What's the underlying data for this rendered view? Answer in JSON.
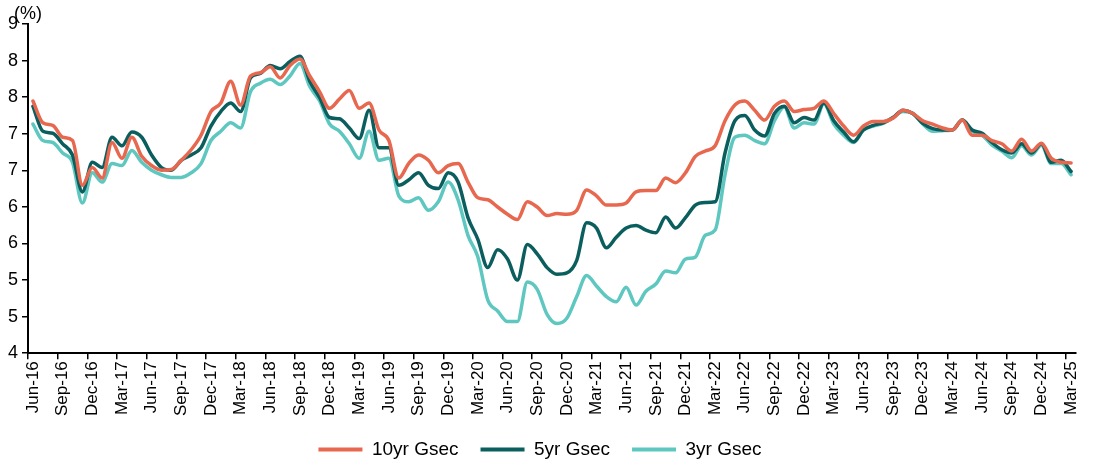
{
  "chart_data": {
    "type": "line",
    "ylabel": "(%)",
    "categories": [
      "Jun-16",
      null,
      null,
      "Sep-16",
      null,
      null,
      "Dec-16",
      null,
      null,
      "Mar-17",
      null,
      null,
      "Jun-17",
      null,
      null,
      "Sep-17",
      null,
      null,
      "Dec-17",
      null,
      null,
      "Mar-18",
      null,
      null,
      "Jun-18",
      null,
      null,
      "Sep-18",
      null,
      null,
      "Dec-18",
      null,
      null,
      "Mar-19",
      null,
      null,
      "Jun-19",
      null,
      null,
      "Sep-19",
      null,
      null,
      "Dec-19",
      null,
      null,
      "Mar-20",
      null,
      null,
      "Jun-20",
      null,
      null,
      "Sep-20",
      null,
      null,
      "Dec-20",
      null,
      null,
      "Mar-21",
      null,
      null,
      "Jun-21",
      null,
      null,
      "Sep-21",
      null,
      null,
      "Dec-21",
      null,
      null,
      "Mar-22",
      null,
      null,
      "Jun-22",
      null,
      null,
      "Sep-22",
      null,
      null,
      "Dec-22",
      null,
      null,
      "Mar-23",
      null,
      null,
      "Jun-23",
      null,
      null,
      "Sep-23",
      null,
      null,
      "Dec-23",
      null,
      null,
      "Mar-24",
      null,
      null,
      "Jun-24",
      null,
      null,
      "Sep-24",
      null,
      null,
      "Dec-24",
      null,
      null,
      "Mar-25"
    ],
    "series": [
      {
        "name": "10yr Gsec",
        "color": "#e8684f",
        "values": [
          7.83,
          7.5,
          7.46,
          7.28,
          7.23,
          6.55,
          6.82,
          6.66,
          7.2,
          6.96,
          7.28,
          6.99,
          6.85,
          6.78,
          6.79,
          6.93,
          7.09,
          7.31,
          7.67,
          7.8,
          8.13,
          7.77,
          8.21,
          8.26,
          8.35,
          8.18,
          8.37,
          8.47,
          8.21,
          7.97,
          7.72,
          7.86,
          7.99,
          7.72,
          7.8,
          7.39,
          7.23,
          6.66,
          6.88,
          7.01,
          6.93,
          6.74,
          6.85,
          6.88,
          6.6,
          6.36,
          6.33,
          6.22,
          6.11,
          6.03,
          6.3,
          6.22,
          6.09,
          6.12,
          6.11,
          6.17,
          6.48,
          6.39,
          6.25,
          6.25,
          6.28,
          6.45,
          6.47,
          6.47,
          6.66,
          6.59,
          6.74,
          6.99,
          7.07,
          7.15,
          7.53,
          7.77,
          7.83,
          7.69,
          7.54,
          7.75,
          7.83,
          7.67,
          7.7,
          7.72,
          7.83,
          7.64,
          7.45,
          7.31,
          7.45,
          7.52,
          7.52,
          7.57,
          7.69,
          7.64,
          7.53,
          7.48,
          7.42,
          7.39,
          7.54,
          7.31,
          7.31,
          7.23,
          7.18,
          7.07,
          7.25,
          7.07,
          7.19,
          6.96,
          6.9,
          6.89
        ]
      },
      {
        "name": "5yr Gsec",
        "color": "#0b5e5e",
        "values": [
          7.75,
          7.37,
          7.34,
          7.18,
          7.01,
          6.45,
          6.9,
          6.82,
          7.28,
          7.15,
          7.36,
          7.28,
          7.01,
          6.82,
          6.78,
          6.93,
          7.01,
          7.12,
          7.45,
          7.67,
          7.8,
          7.67,
          8.18,
          8.25,
          8.37,
          8.32,
          8.43,
          8.51,
          8.13,
          7.88,
          7.58,
          7.56,
          7.42,
          7.26,
          7.69,
          7.12,
          7.12,
          6.55,
          6.63,
          6.74,
          6.55,
          6.5,
          6.74,
          6.6,
          6.06,
          5.73,
          5.3,
          5.57,
          5.43,
          5.11,
          5.65,
          5.51,
          5.3,
          5.2,
          5.22,
          5.41,
          5.98,
          5.9,
          5.6,
          5.76,
          5.9,
          5.94,
          5.87,
          5.83,
          6.07,
          5.9,
          6.06,
          6.25,
          6.29,
          6.3,
          7.04,
          7.53,
          7.61,
          7.39,
          7.3,
          7.64,
          7.75,
          7.5,
          7.58,
          7.54,
          7.8,
          7.53,
          7.36,
          7.21,
          7.39,
          7.46,
          7.5,
          7.58,
          7.69,
          7.64,
          7.49,
          7.41,
          7.39,
          7.39,
          7.54,
          7.39,
          7.34,
          7.2,
          7.09,
          7.04,
          7.18,
          7.04,
          7.18,
          6.9,
          6.93,
          6.76
        ]
      },
      {
        "name": "3yr Gsec",
        "color": "#5ec8c0",
        "values": [
          7.48,
          7.23,
          7.2,
          7.04,
          6.9,
          6.28,
          6.74,
          6.6,
          6.88,
          6.85,
          7.08,
          6.9,
          6.78,
          6.71,
          6.67,
          6.67,
          6.74,
          6.88,
          7.23,
          7.37,
          7.5,
          7.42,
          7.97,
          8.1,
          8.16,
          8.08,
          8.21,
          8.4,
          8.05,
          7.83,
          7.48,
          7.37,
          7.18,
          6.96,
          7.37,
          6.93,
          6.96,
          6.39,
          6.3,
          6.36,
          6.17,
          6.3,
          6.6,
          6.33,
          5.79,
          5.46,
          4.81,
          4.64,
          4.48,
          4.48,
          5.08,
          4.97,
          4.59,
          4.45,
          4.53,
          4.86,
          5.18,
          5.02,
          4.86,
          4.78,
          5.0,
          4.73,
          4.94,
          5.05,
          5.25,
          5.22,
          5.43,
          5.46,
          5.79,
          5.87,
          6.71,
          7.28,
          7.31,
          7.23,
          7.18,
          7.53,
          7.74,
          7.42,
          7.5,
          7.48,
          7.79,
          7.48,
          7.31,
          7.2,
          7.39,
          7.45,
          7.49,
          7.58,
          7.67,
          7.64,
          7.48,
          7.37,
          7.38,
          7.39,
          7.54,
          7.37,
          7.31,
          7.16,
          7.07,
          6.97,
          7.15,
          7.01,
          7.16,
          6.88,
          6.88,
          6.71
        ]
      }
    ],
    "ylim": [
      4,
      9
    ],
    "yticks": [
      4,
      {
        "value": 4.556,
        "label": "5"
      },
      {
        "value": 5.111,
        "label": "5"
      },
      {
        "value": 5.667,
        "label": "6"
      },
      {
        "value": 6.222,
        "label": "6"
      },
      {
        "value": 6.778,
        "label": "7"
      },
      {
        "value": 7.333,
        "label": "7"
      },
      {
        "value": 7.889,
        "label": "8"
      },
      {
        "value": 8.444,
        "label": "8"
      },
      9
    ],
    "grid": false,
    "legend": "bottom",
    "marker": "none",
    "line_style": "solid"
  }
}
